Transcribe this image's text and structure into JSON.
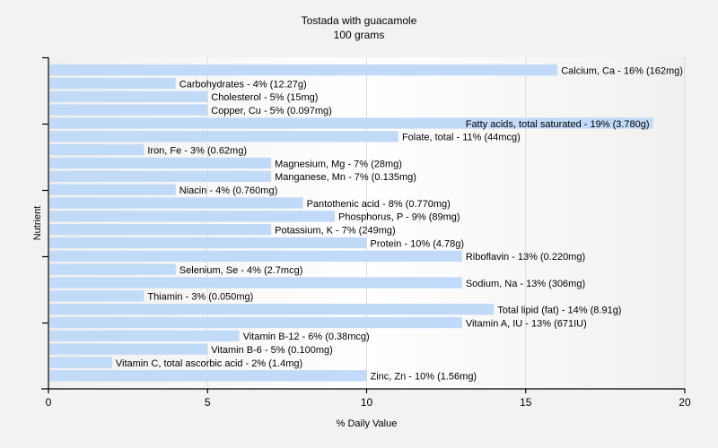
{
  "chart_data": {
    "type": "bar",
    "orientation": "horizontal",
    "title": "Tostada with guacamole",
    "subtitle": "100 grams",
    "xlabel": "% Daily Value",
    "ylabel": "Nutrient",
    "xlim": [
      0,
      20
    ],
    "xticks": [
      0,
      5,
      10,
      15,
      20
    ],
    "grid": true,
    "legend": "none",
    "bar_color": "#c0daf8",
    "categories": [
      "Calcium, Ca",
      "Carbohydrates",
      "Cholesterol",
      "Copper, Cu",
      "Fatty acids, total saturated",
      "Folate, total",
      "Iron, Fe",
      "Magnesium, Mg",
      "Manganese, Mn",
      "Niacin",
      "Pantothenic acid",
      "Phosphorus, P",
      "Potassium, K",
      "Protein",
      "Riboflavin",
      "Selenium, Se",
      "Sodium, Na",
      "Thiamin",
      "Total lipid (fat)",
      "Vitamin A, IU",
      "Vitamin B-12",
      "Vitamin B-6",
      "Vitamin C, total ascorbic acid",
      "Zinc, Zn"
    ],
    "values": [
      16,
      4,
      5,
      5,
      19,
      11,
      3,
      7,
      7,
      4,
      8,
      9,
      7,
      10,
      13,
      4,
      13,
      3,
      14,
      13,
      6,
      5,
      2,
      10
    ],
    "data_labels": [
      "Calcium, Ca - 16% (162mg)",
      "Carbohydrates - 4% (12.27g)",
      "Cholesterol - 5% (15mg)",
      "Copper, Cu - 5% (0.097mg)",
      "Fatty acids, total saturated - 19% (3.780g)",
      "Folate, total - 11% (44mcg)",
      "Iron, Fe - 3% (0.62mg)",
      "Magnesium, Mg - 7% (28mg)",
      "Manganese, Mn - 7% (0.135mg)",
      "Niacin - 4% (0.760mg)",
      "Pantothenic acid - 8% (0.770mg)",
      "Phosphorus, P - 9% (89mg)",
      "Potassium, K - 7% (249mg)",
      "Protein - 10% (4.78g)",
      "Riboflavin - 13% (0.220mg)",
      "Selenium, Se - 4% (2.7mcg)",
      "Sodium, Na - 13% (306mg)",
      "Thiamin - 3% (0.050mg)",
      "Total lipid (fat) - 14% (8.91g)",
      "Vitamin A, IU - 13% (671IU)",
      "Vitamin B-12 - 6% (0.38mcg)",
      "Vitamin B-6 - 5% (0.100mg)",
      "Vitamin C, total ascorbic acid - 2% (1.4mg)",
      "Zinc, Zn - 10% (1.56mg)"
    ]
  }
}
